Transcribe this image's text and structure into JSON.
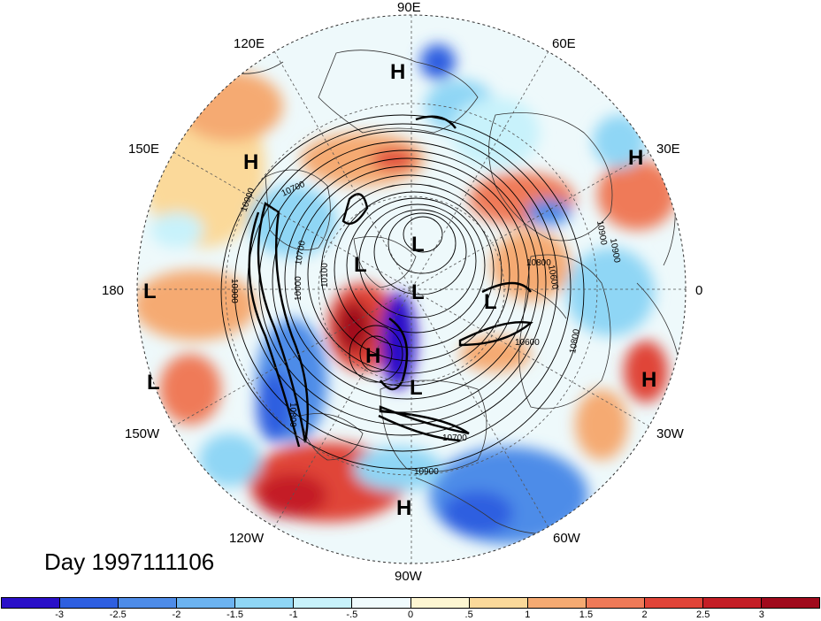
{
  "title": "Day 1997111106",
  "longitude_labels": [
    "90E",
    "60E",
    "30E",
    "0",
    "30W",
    "60W",
    "90W",
    "120W",
    "150W",
    "180",
    "150E",
    "120E"
  ],
  "pressure_centers": [
    {
      "type": "H",
      "id": "h-north"
    },
    {
      "type": "H",
      "id": "h-150e"
    },
    {
      "type": "H",
      "id": "h-30e"
    },
    {
      "type": "L",
      "id": "l-upper"
    },
    {
      "type": "L",
      "id": "l-center-left"
    },
    {
      "type": "L",
      "id": "l-center"
    },
    {
      "type": "L",
      "id": "l-right"
    },
    {
      "type": "L",
      "id": "l-180"
    },
    {
      "type": "L",
      "id": "l-lower-left"
    },
    {
      "type": "H",
      "id": "h-center"
    },
    {
      "type": "L",
      "id": "l-lower"
    },
    {
      "type": "H",
      "id": "h-right"
    },
    {
      "type": "H",
      "id": "h-bottom"
    }
  ],
  "contour_labels": [
    "10900",
    "10700",
    "10900",
    "10800",
    "10600",
    "10900",
    "10600",
    "10800",
    "10700",
    "10900",
    "10900",
    "10800",
    "10700",
    "10000",
    "10100"
  ],
  "colorbar": {
    "labels": [
      "-3",
      "-2.5",
      "-2",
      "-1.5",
      "-1",
      "-.5",
      "0",
      ".5",
      "1",
      "1.5",
      "2",
      "2.5",
      "3"
    ],
    "colors": [
      "#2a10c8",
      "#2e5fe0",
      "#4e8ce8",
      "#6cb3f0",
      "#8fd6f5",
      "#c8f2fb",
      "#f0fbfd",
      "#fdf6d2",
      "#fbd99a",
      "#f5aa72",
      "#ef7a58",
      "#e04438",
      "#c41e26",
      "#a00a1c"
    ]
  },
  "colors": {
    "ocean_blue": "#4e8ce8",
    "warm_red": "#e04438",
    "contour": "#000000"
  }
}
